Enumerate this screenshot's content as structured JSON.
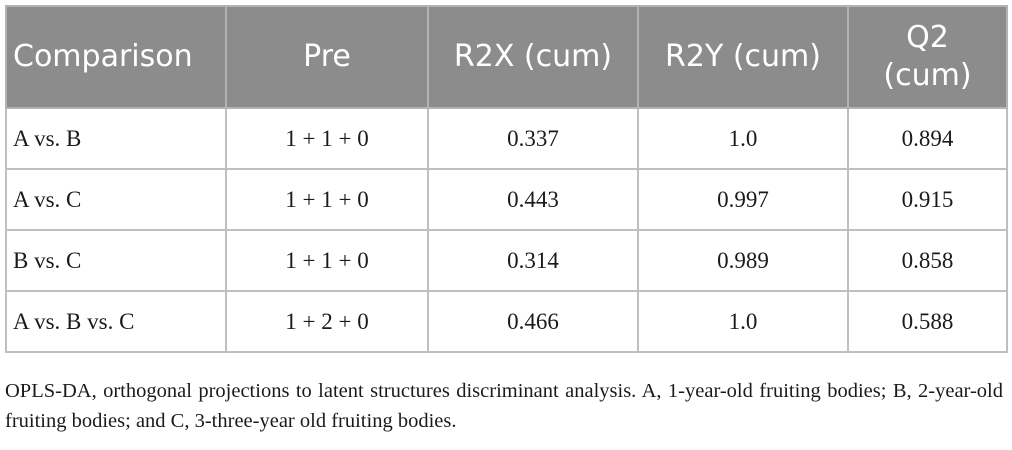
{
  "table": {
    "headers": [
      "Comparison",
      "Pre",
      "R2X (cum)",
      "R2Y (cum)",
      "Q2\n(cum)"
    ],
    "header_q2_line1": "Q2",
    "header_q2_line2": "(cum)",
    "rows": [
      [
        "A vs. B",
        "1 + 1 + 0",
        "0.337",
        "1.0",
        "0.894"
      ],
      [
        "A vs. C",
        "1 + 1 + 0",
        "0.443",
        "0.997",
        "0.915"
      ],
      [
        "B vs. C",
        "1 + 1 + 0",
        "0.314",
        "0.989",
        "0.858"
      ],
      [
        "A vs. B vs. C",
        "1 + 2 + 0",
        "0.466",
        "1.0",
        "0.588"
      ]
    ]
  },
  "footnote": "OPLS-DA, orthogonal projections to latent structures discriminant analysis. A, 1-year-old fruiting bodies; B, 2-year-old fruiting bodies; and C, 3-three-year old fruiting bodies.",
  "colors": {
    "header_bg": "#8c8c8c",
    "header_text": "#ffffff",
    "grid": "#bfbfbf"
  }
}
